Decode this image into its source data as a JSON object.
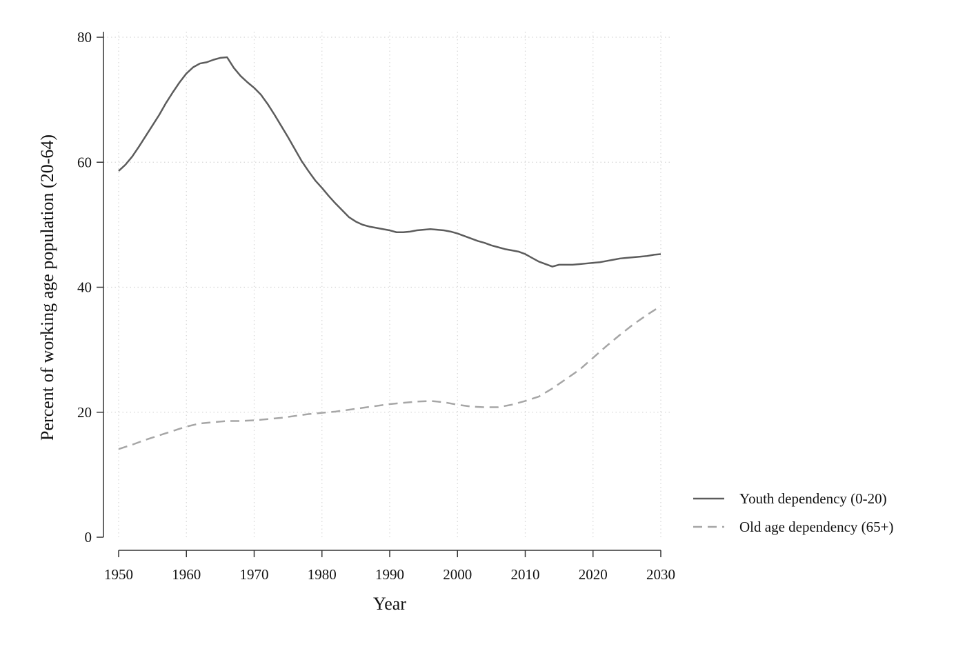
{
  "chart_data": {
    "type": "line",
    "xlabel": "Year",
    "ylabel": "Percent of working age population (20-64)",
    "xlim": [
      1950,
      2030
    ],
    "ylim": [
      0,
      80
    ],
    "xticks": [
      "1950",
      "1960",
      "1970",
      "1980",
      "1990",
      "2000",
      "2010",
      "2020",
      "2030"
    ],
    "yticks": [
      "0",
      "20",
      "40",
      "60",
      "80"
    ],
    "grid": true,
    "legend_position": "right",
    "series": [
      {
        "name": "Youth dependency (0-20)",
        "color": "#5c5c5c",
        "style": "solid",
        "points": [
          [
            1950,
            58.6
          ],
          [
            1951,
            59.6
          ],
          [
            1952,
            60.9
          ],
          [
            1953,
            62.5
          ],
          [
            1954,
            64.2
          ],
          [
            1955,
            65.9
          ],
          [
            1956,
            67.6
          ],
          [
            1957,
            69.5
          ],
          [
            1958,
            71.2
          ],
          [
            1959,
            72.8
          ],
          [
            1960,
            74.2
          ],
          [
            1961,
            75.2
          ],
          [
            1962,
            75.8
          ],
          [
            1963,
            76.0
          ],
          [
            1964,
            76.4
          ],
          [
            1965,
            76.7
          ],
          [
            1966,
            76.8
          ],
          [
            1967,
            75.1
          ],
          [
            1968,
            73.8
          ],
          [
            1969,
            72.8
          ],
          [
            1970,
            71.9
          ],
          [
            1971,
            70.8
          ],
          [
            1972,
            69.3
          ],
          [
            1973,
            67.6
          ],
          [
            1974,
            65.8
          ],
          [
            1975,
            64.0
          ],
          [
            1976,
            62.1
          ],
          [
            1977,
            60.2
          ],
          [
            1978,
            58.6
          ],
          [
            1979,
            57.1
          ],
          [
            1980,
            55.9
          ],
          [
            1981,
            54.6
          ],
          [
            1982,
            53.4
          ],
          [
            1983,
            52.3
          ],
          [
            1984,
            51.2
          ],
          [
            1985,
            50.5
          ],
          [
            1986,
            50.0
          ],
          [
            1987,
            49.7
          ],
          [
            1988,
            49.5
          ],
          [
            1989,
            49.3
          ],
          [
            1990,
            49.1
          ],
          [
            1991,
            48.8
          ],
          [
            1992,
            48.8
          ],
          [
            1993,
            48.9
          ],
          [
            1994,
            49.1
          ],
          [
            1995,
            49.2
          ],
          [
            1996,
            49.3
          ],
          [
            1997,
            49.2
          ],
          [
            1998,
            49.1
          ],
          [
            1999,
            48.9
          ],
          [
            2000,
            48.6
          ],
          [
            2001,
            48.2
          ],
          [
            2002,
            47.8
          ],
          [
            2003,
            47.4
          ],
          [
            2004,
            47.1
          ],
          [
            2005,
            46.7
          ],
          [
            2006,
            46.4
          ],
          [
            2007,
            46.1
          ],
          [
            2008,
            45.9
          ],
          [
            2009,
            45.7
          ],
          [
            2010,
            45.3
          ],
          [
            2011,
            44.7
          ],
          [
            2012,
            44.1
          ],
          [
            2013,
            43.7
          ],
          [
            2014,
            43.3
          ],
          [
            2015,
            43.6
          ],
          [
            2016,
            43.6
          ],
          [
            2017,
            43.6
          ],
          [
            2018,
            43.7
          ],
          [
            2019,
            43.8
          ],
          [
            2020,
            43.9
          ],
          [
            2021,
            44.0
          ],
          [
            2022,
            44.2
          ],
          [
            2023,
            44.4
          ],
          [
            2024,
            44.6
          ],
          [
            2025,
            44.7
          ],
          [
            2026,
            44.8
          ],
          [
            2027,
            44.9
          ],
          [
            2028,
            45.0
          ],
          [
            2029,
            45.2
          ],
          [
            2030,
            45.3
          ]
        ]
      },
      {
        "name": "Old age dependency (65+)",
        "color": "#a6a6a6",
        "style": "dashed",
        "points": [
          [
            1950,
            14.1
          ],
          [
            1952,
            14.8
          ],
          [
            1954,
            15.6
          ],
          [
            1956,
            16.3
          ],
          [
            1958,
            17.0
          ],
          [
            1960,
            17.7
          ],
          [
            1962,
            18.2
          ],
          [
            1964,
            18.4
          ],
          [
            1966,
            18.6
          ],
          [
            1968,
            18.6
          ],
          [
            1970,
            18.7
          ],
          [
            1972,
            18.9
          ],
          [
            1974,
            19.1
          ],
          [
            1976,
            19.4
          ],
          [
            1978,
            19.7
          ],
          [
            1980,
            19.9
          ],
          [
            1982,
            20.1
          ],
          [
            1984,
            20.4
          ],
          [
            1986,
            20.7
          ],
          [
            1988,
            21.0
          ],
          [
            1990,
            21.3
          ],
          [
            1992,
            21.5
          ],
          [
            1994,
            21.7
          ],
          [
            1996,
            21.8
          ],
          [
            1998,
            21.6
          ],
          [
            2000,
            21.2
          ],
          [
            2002,
            20.9
          ],
          [
            2004,
            20.8
          ],
          [
            2006,
            20.8
          ],
          [
            2008,
            21.2
          ],
          [
            2010,
            21.8
          ],
          [
            2012,
            22.5
          ],
          [
            2014,
            23.8
          ],
          [
            2016,
            25.3
          ],
          [
            2018,
            26.8
          ],
          [
            2020,
            28.7
          ],
          [
            2022,
            30.6
          ],
          [
            2024,
            32.4
          ],
          [
            2026,
            34.1
          ],
          [
            2028,
            35.6
          ],
          [
            2030,
            37.0
          ]
        ]
      }
    ]
  }
}
